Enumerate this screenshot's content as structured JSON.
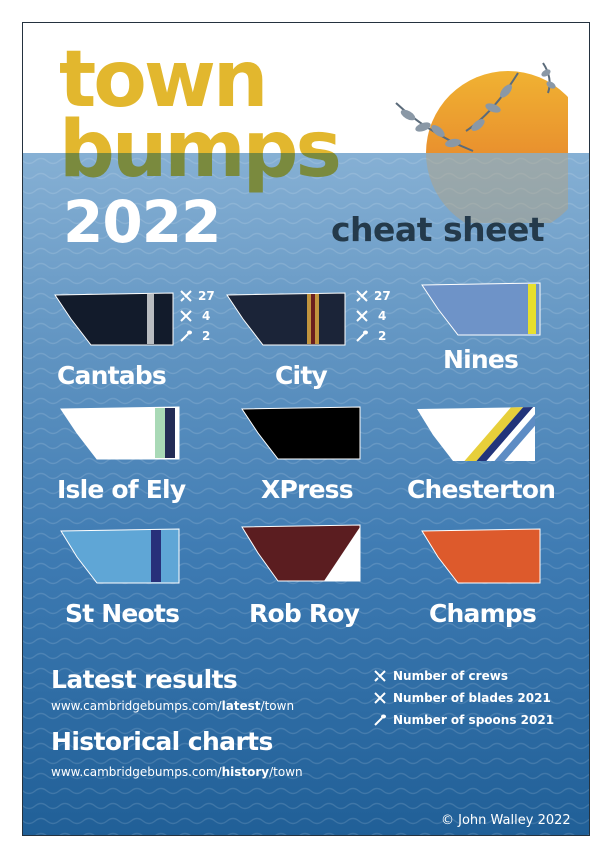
{
  "header": {
    "title_line1": "town",
    "title_line2": "bumps",
    "year": "2022",
    "subtitle": "cheat sheet"
  },
  "colors": {
    "title_yellow": "#e2b72e",
    "sun_orange": "#e59a2c",
    "sea_blue": "#3d7ab2",
    "dark_text": "#243a4b"
  },
  "clubs": [
    {
      "name": "Cantabs",
      "stats": {
        "crews": "27",
        "blades": "4",
        "spoons": "2"
      }
    },
    {
      "name": "City",
      "stats": {
        "crews": "27",
        "blades": "4",
        "spoons": "2"
      }
    },
    {
      "name": "Nines"
    },
    {
      "name": "Isle of Ely"
    },
    {
      "name": "XPress"
    },
    {
      "name": "Chesterton"
    },
    {
      "name": "St Neots"
    },
    {
      "name": "Rob Roy"
    },
    {
      "name": "Champs"
    }
  ],
  "links": {
    "latest_heading": "Latest results",
    "latest_url_prefix": "www.cambridgebumps.com/",
    "latest_url_bold": "latest",
    "latest_url_suffix": "/town",
    "history_heading": "Historical charts",
    "history_url_prefix": "www.cambridgebumps.com/",
    "history_url_bold": "history",
    "history_url_suffix": "/town"
  },
  "legend": {
    "crews": "Number of crews",
    "blades": "Number of blades 2021",
    "spoons": "Number of spoons 2021"
  },
  "footer": {
    "copyright": "© John Walley 2022"
  },
  "icons": [
    "crews-icon",
    "blades-icon",
    "spoon-icon",
    "sun-icon",
    "olive-branch-icon"
  ]
}
